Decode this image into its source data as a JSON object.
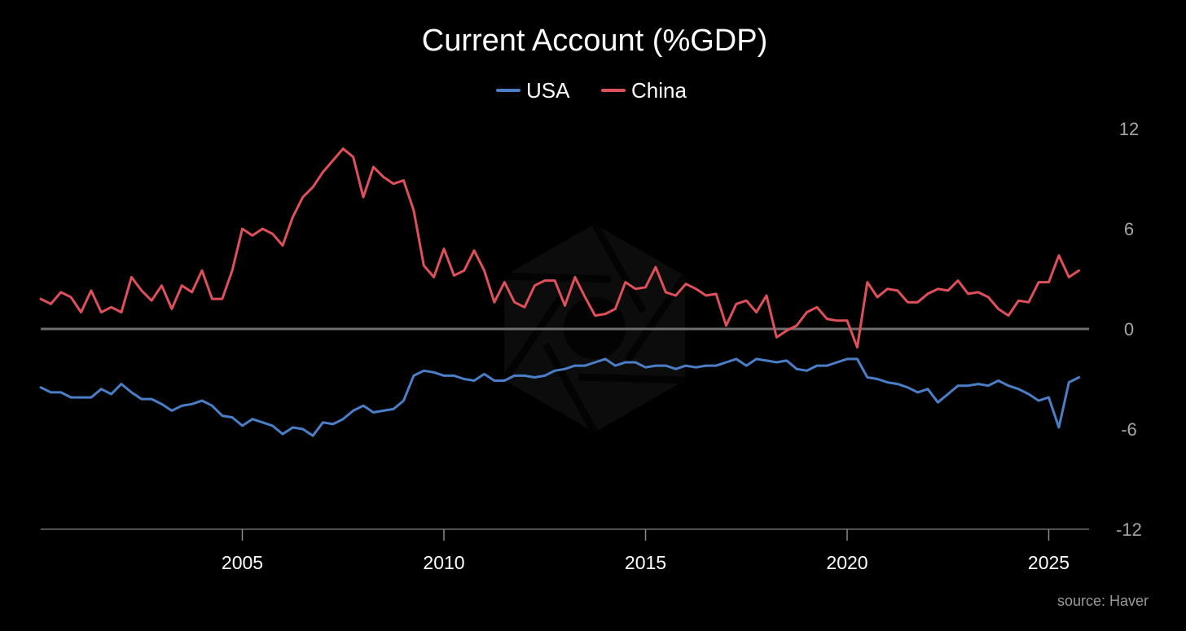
{
  "chart_data": {
    "type": "line",
    "title": "Current Account (%GDP)",
    "source": "source: Haver",
    "legend_position": "top-center",
    "y_axis_side": "right",
    "ylim": [
      -12,
      12
    ],
    "yticks": [
      12,
      6,
      0,
      -6,
      -12
    ],
    "ytick_labels": [
      "12",
      "6",
      "0",
      "-6",
      "-12"
    ],
    "xlim": [
      2000.0,
      2026.0
    ],
    "xticks": [
      2005,
      2010,
      2015,
      2020,
      2025
    ],
    "xtick_labels": [
      "2005",
      "2010",
      "2015",
      "2020",
      "2025"
    ],
    "zero_line": true,
    "series": [
      {
        "name": "USA",
        "color": "#4a7fc8",
        "x": [
          2000.0,
          2000.25,
          2000.5,
          2000.75,
          2001.0,
          2001.25,
          2001.5,
          2001.75,
          2002.0,
          2002.25,
          2002.5,
          2002.75,
          2003.0,
          2003.25,
          2003.5,
          2003.75,
          2004.0,
          2004.25,
          2004.5,
          2004.75,
          2005.0,
          2005.25,
          2005.5,
          2005.75,
          2006.0,
          2006.25,
          2006.5,
          2006.75,
          2007.0,
          2007.25,
          2007.5,
          2007.75,
          2008.0,
          2008.25,
          2008.5,
          2008.75,
          2009.0,
          2009.25,
          2009.5,
          2009.75,
          2010.0,
          2010.25,
          2010.5,
          2010.75,
          2011.0,
          2011.25,
          2011.5,
          2011.75,
          2012.0,
          2012.25,
          2012.5,
          2012.75,
          2013.0,
          2013.25,
          2013.5,
          2013.75,
          2014.0,
          2014.25,
          2014.5,
          2014.75,
          2015.0,
          2015.25,
          2015.5,
          2015.75,
          2016.0,
          2016.25,
          2016.5,
          2016.75,
          2017.0,
          2017.25,
          2017.5,
          2017.75,
          2018.0,
          2018.25,
          2018.5,
          2018.75,
          2019.0,
          2019.25,
          2019.5,
          2019.75,
          2020.0,
          2020.25,
          2020.5,
          2020.75,
          2021.0,
          2021.25,
          2021.5,
          2021.75,
          2022.0,
          2022.25,
          2022.5,
          2022.75,
          2023.0,
          2023.25,
          2023.5,
          2023.75,
          2024.0,
          2024.25,
          2024.5,
          2024.75,
          2025.0,
          2025.25,
          2025.5,
          2025.75
        ],
        "values": [
          -3.5,
          -3.8,
          -3.8,
          -4.1,
          -4.1,
          -4.1,
          -3.6,
          -3.9,
          -3.3,
          -3.8,
          -4.2,
          -4.2,
          -4.5,
          -4.9,
          -4.6,
          -4.5,
          -4.3,
          -4.6,
          -5.2,
          -5.3,
          -5.8,
          -5.4,
          -5.6,
          -5.8,
          -6.3,
          -5.9,
          -6.0,
          -6.4,
          -5.6,
          -5.7,
          -5.4,
          -4.9,
          -4.6,
          -5.0,
          -4.9,
          -4.8,
          -4.3,
          -2.8,
          -2.5,
          -2.6,
          -2.8,
          -2.8,
          -3.0,
          -3.1,
          -2.7,
          -3.1,
          -3.1,
          -2.8,
          -2.8,
          -2.9,
          -2.8,
          -2.5,
          -2.4,
          -2.2,
          -2.2,
          -2.0,
          -1.8,
          -2.2,
          -2.0,
          -2.0,
          -2.3,
          -2.2,
          -2.2,
          -2.4,
          -2.2,
          -2.3,
          -2.2,
          -2.2,
          -2.0,
          -1.8,
          -2.2,
          -1.8,
          -1.9,
          -2.0,
          -1.9,
          -2.4,
          -2.5,
          -2.2,
          -2.2,
          -2.0,
          -1.8,
          -1.8,
          -2.9,
          -3.0,
          -3.2,
          -3.3,
          -3.5,
          -3.8,
          -3.6,
          -4.4,
          -3.9,
          -3.4,
          -3.4,
          -3.3,
          -3.4,
          -3.1,
          -3.4,
          -3.6,
          -3.9,
          -4.3,
          -4.1,
          -5.9,
          -3.2,
          -2.9
        ]
      },
      {
        "name": "China",
        "color": "#e0505a",
        "x": [
          2000.0,
          2000.25,
          2000.5,
          2000.75,
          2001.0,
          2001.25,
          2001.5,
          2001.75,
          2002.0,
          2002.25,
          2002.5,
          2002.75,
          2003.0,
          2003.25,
          2003.5,
          2003.75,
          2004.0,
          2004.25,
          2004.5,
          2004.75,
          2005.0,
          2005.25,
          2005.5,
          2005.75,
          2006.0,
          2006.25,
          2006.5,
          2006.75,
          2007.0,
          2007.25,
          2007.5,
          2007.75,
          2008.0,
          2008.25,
          2008.5,
          2008.75,
          2009.0,
          2009.25,
          2009.5,
          2009.75,
          2010.0,
          2010.25,
          2010.5,
          2010.75,
          2011.0,
          2011.25,
          2011.5,
          2011.75,
          2012.0,
          2012.25,
          2012.5,
          2012.75,
          2013.0,
          2013.25,
          2013.5,
          2013.75,
          2014.0,
          2014.25,
          2014.5,
          2014.75,
          2015.0,
          2015.25,
          2015.5,
          2015.75,
          2016.0,
          2016.25,
          2016.5,
          2016.75,
          2017.0,
          2017.25,
          2017.5,
          2017.75,
          2018.0,
          2018.25,
          2018.5,
          2018.75,
          2019.0,
          2019.25,
          2019.5,
          2019.75,
          2020.0,
          2020.25,
          2020.5,
          2020.75,
          2021.0,
          2021.25,
          2021.5,
          2021.75,
          2022.0,
          2022.25,
          2022.5,
          2022.75,
          2023.0,
          2023.25,
          2023.5,
          2023.75,
          2024.0,
          2024.25,
          2024.5,
          2024.75,
          2025.0,
          2025.25,
          2025.5,
          2025.75
        ],
        "values": [
          1.8,
          1.5,
          2.2,
          1.9,
          1.0,
          2.3,
          1.0,
          1.3,
          1.0,
          3.1,
          2.3,
          1.7,
          2.6,
          1.2,
          2.6,
          2.2,
          3.5,
          1.8,
          1.8,
          3.5,
          6.0,
          5.6,
          6.0,
          5.7,
          5.0,
          6.7,
          7.9,
          8.5,
          9.4,
          10.1,
          10.8,
          10.3,
          7.9,
          9.7,
          9.1,
          8.7,
          8.9,
          7.1,
          3.8,
          3.1,
          4.8,
          3.2,
          3.5,
          4.7,
          3.5,
          1.6,
          2.8,
          1.6,
          1.3,
          2.6,
          2.9,
          2.9,
          1.4,
          3.1,
          1.9,
          0.8,
          0.9,
          1.2,
          2.8,
          2.4,
          2.5,
          3.7,
          2.2,
          2.0,
          2.7,
          2.4,
          2.0,
          2.1,
          0.2,
          1.5,
          1.7,
          1.0,
          2.0,
          -0.5,
          -0.1,
          0.2,
          1.0,
          1.3,
          0.6,
          0.5,
          0.5,
          -1.1,
          2.8,
          1.9,
          2.4,
          2.3,
          1.6,
          1.6,
          2.1,
          2.4,
          2.3,
          2.9,
          2.1,
          2.2,
          1.9,
          1.2,
          0.8,
          1.7,
          1.6,
          2.8,
          2.8,
          4.4,
          3.1,
          3.5
        ]
      }
    ]
  }
}
